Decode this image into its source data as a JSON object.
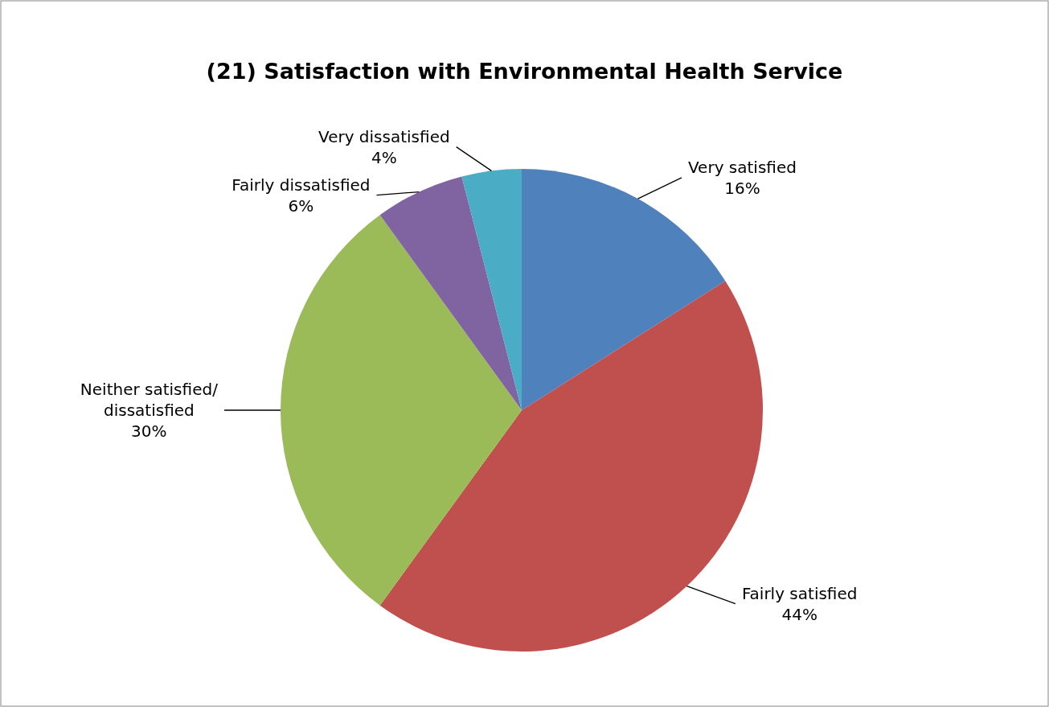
{
  "chart_data": {
    "type": "pie",
    "title": "(21) Satisfaction with Environmental Health Service",
    "categories": [
      "Very satisfied",
      "Fairly satisfied",
      "Neither satisfied/dissatisfied",
      "Fairly dissatisfied",
      "Very dissatisfied"
    ],
    "values": [
      16,
      44,
      30,
      6,
      4
    ],
    "colors": [
      "#4f81bd",
      "#c0504d",
      "#9bbb59",
      "#8064a2",
      "#4bacc6"
    ],
    "value_labels": [
      "16%",
      "44%",
      "30%",
      "6%",
      "4%"
    ]
  }
}
